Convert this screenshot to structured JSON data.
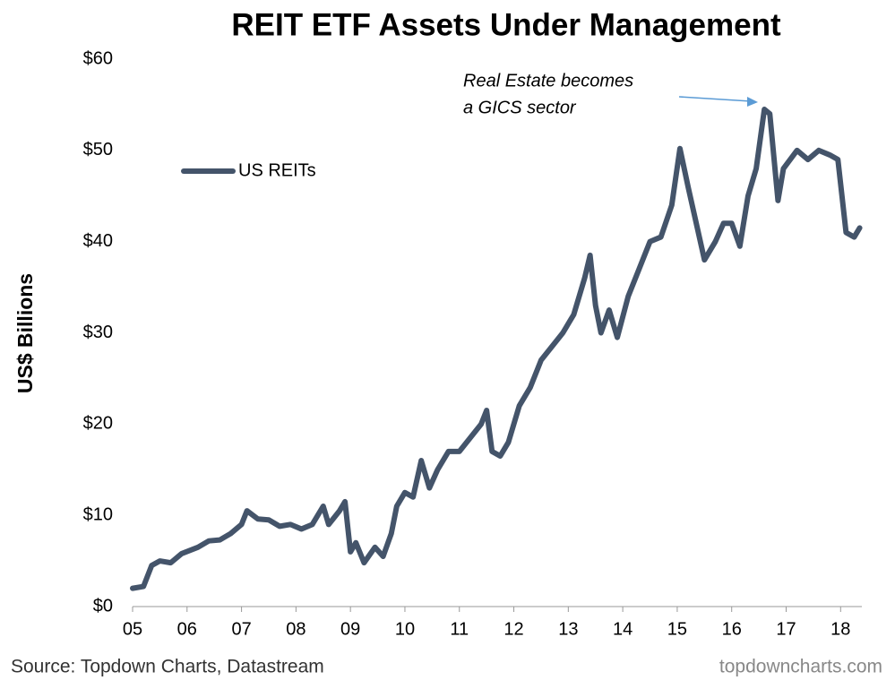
{
  "chart_data": {
    "type": "line",
    "title": "REIT ETF Assets Under Management",
    "y_label": "US$ Billions",
    "annotation": [
      "Real Estate becomes",
      "a GICS sector"
    ],
    "source": "Source: Topdown Charts, Datastream",
    "watermark": "topdowncharts.com",
    "x": [
      2005.0,
      2005.2,
      2005.35,
      2005.5,
      2005.7,
      2005.9,
      2006.2,
      2006.4,
      2006.6,
      2006.8,
      2007.0,
      2007.1,
      2007.3,
      2007.5,
      2007.7,
      2007.9,
      2008.1,
      2008.3,
      2008.5,
      2008.6,
      2008.8,
      2008.9,
      2009.0,
      2009.1,
      2009.25,
      2009.45,
      2009.6,
      2009.75,
      2009.85,
      2010.0,
      2010.15,
      2010.3,
      2010.45,
      2010.6,
      2010.8,
      2011.0,
      2011.2,
      2011.4,
      2011.5,
      2011.6,
      2011.75,
      2011.9,
      2012.1,
      2012.3,
      2012.5,
      2012.7,
      2012.9,
      2013.1,
      2013.3,
      2013.4,
      2013.5,
      2013.6,
      2013.75,
      2013.9,
      2014.1,
      2014.3,
      2014.5,
      2014.7,
      2014.9,
      2015.05,
      2015.2,
      2015.35,
      2015.5,
      2015.7,
      2015.85,
      2016.0,
      2016.15,
      2016.3,
      2016.45,
      2016.6,
      2016.7,
      2016.85,
      2016.95,
      2017.2,
      2017.4,
      2017.6,
      2017.8,
      2017.95,
      2018.1,
      2018.25,
      2018.35
    ],
    "series": [
      {
        "name": "US REITs",
        "color": "#44546a",
        "values": [
          2,
          2.2,
          4.5,
          5,
          4.8,
          5.8,
          6.5,
          7.2,
          7.3,
          8,
          9,
          10.5,
          9.6,
          9.5,
          8.8,
          9,
          8.5,
          9,
          11,
          9,
          10.5,
          11.5,
          6,
          7,
          4.8,
          6.5,
          5.5,
          8,
          11,
          12.5,
          12,
          16,
          13,
          15,
          17,
          17,
          18.5,
          20,
          21.5,
          17,
          16.5,
          18,
          22,
          24,
          27,
          28.5,
          30,
          32,
          36,
          38.5,
          33,
          30,
          32.5,
          29.5,
          34,
          37,
          40,
          40.5,
          44,
          50.2,
          46,
          42,
          38,
          40,
          42,
          42,
          39.5,
          45,
          48,
          54.5,
          54,
          44.5,
          48,
          50,
          49,
          50,
          49.5,
          49,
          41,
          40.5,
          41.5
        ]
      }
    ],
    "xlim": [
      2005,
      2018.39
    ],
    "xticks": [
      {
        "value": 2005,
        "label": "05"
      },
      {
        "value": 2006,
        "label": "06"
      },
      {
        "value": 2007,
        "label": "07"
      },
      {
        "value": 2008,
        "label": "08"
      },
      {
        "value": 2009,
        "label": "09"
      },
      {
        "value": 2010,
        "label": "10"
      },
      {
        "value": 2011,
        "label": "11"
      },
      {
        "value": 2012,
        "label": "12"
      },
      {
        "value": 2013,
        "label": "13"
      },
      {
        "value": 2014,
        "label": "14"
      },
      {
        "value": 2015,
        "label": "15"
      },
      {
        "value": 2016,
        "label": "16"
      },
      {
        "value": 2017,
        "label": "17"
      },
      {
        "value": 2018,
        "label": "18"
      }
    ],
    "ylim": [
      0,
      60
    ],
    "yticks": [
      {
        "value": 0,
        "label": "$0"
      },
      {
        "value": 10,
        "label": "$10"
      },
      {
        "value": 20,
        "label": "$20"
      },
      {
        "value": 30,
        "label": "$30"
      },
      {
        "value": 40,
        "label": "$40"
      },
      {
        "value": 50,
        "label": "$50"
      },
      {
        "value": 60,
        "label": "$60"
      }
    ],
    "grid": false
  }
}
